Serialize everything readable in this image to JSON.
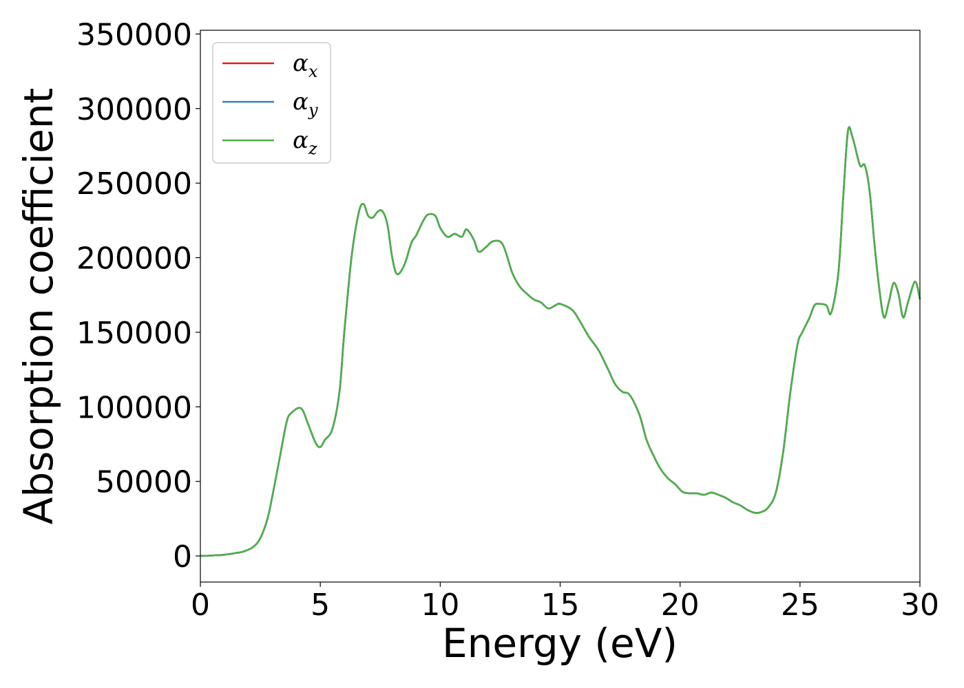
{
  "chart_data": {
    "type": "line",
    "xlabel": "Energy (eV)",
    "ylabel": "Absorption coefficient",
    "xlim": [
      0,
      30
    ],
    "ylim": [
      -17500,
      352500
    ],
    "xticks": [
      0,
      5,
      10,
      15,
      20,
      25,
      30
    ],
    "xtick_labels": [
      "0",
      "5",
      "10",
      "15",
      "20",
      "25",
      "30"
    ],
    "yticks": [
      0,
      50000,
      100000,
      150000,
      200000,
      250000,
      300000,
      350000
    ],
    "ytick_labels": [
      "0",
      "50000",
      "100000",
      "150000",
      "200000",
      "250000",
      "300000",
      "350000"
    ],
    "grid": false,
    "legend_position": "top-left",
    "series": [
      {
        "name": "α",
        "subscript": "x",
        "color": "#e41a1c"
      },
      {
        "name": "α",
        "subscript": "y",
        "color": "#377eb8"
      },
      {
        "name": "α",
        "subscript": "z",
        "color": "#4daf4a"
      }
    ],
    "x": [
      0,
      0.5,
      1.0,
      1.5,
      1.8,
      2.2,
      2.5,
      2.8,
      3.0,
      3.3,
      3.6,
      3.8,
      4.2,
      4.5,
      4.8,
      5.0,
      5.2,
      5.5,
      5.8,
      6.0,
      6.3,
      6.6,
      6.8,
      7.0,
      7.2,
      7.4,
      7.6,
      7.8,
      8.0,
      8.2,
      8.5,
      8.8,
      9.0,
      9.3,
      9.5,
      9.8,
      10.0,
      10.3,
      10.6,
      10.9,
      11.1,
      11.4,
      11.6,
      11.9,
      12.2,
      12.6,
      13.0,
      13.3,
      13.6,
      13.9,
      14.2,
      14.5,
      14.8,
      15.0,
      15.5,
      15.8,
      16.2,
      16.6,
      17.0,
      17.3,
      17.6,
      17.9,
      18.3,
      18.6,
      18.9,
      19.2,
      19.5,
      19.8,
      20.1,
      20.4,
      20.7,
      21.0,
      21.3,
      21.6,
      21.9,
      22.2,
      22.5,
      22.8,
      23.1,
      23.4,
      23.7,
      24.0,
      24.3,
      24.6,
      24.9,
      25.1,
      25.4,
      25.6,
      25.8,
      26.1,
      26.3,
      26.6,
      26.8,
      27.0,
      27.2,
      27.5,
      27.7,
      27.9,
      28.1,
      28.3,
      28.5,
      28.7,
      28.9,
      29.1,
      29.3,
      29.5,
      29.8,
      30.0
    ],
    "values": [
      0,
      300,
      800,
      2000,
      3000,
      6000,
      12000,
      25000,
      40000,
      65000,
      90000,
      96000,
      99000,
      88000,
      76000,
      73000,
      78000,
      85000,
      110000,
      150000,
      200000,
      230000,
      236000,
      228000,
      227000,
      231000,
      231000,
      222000,
      200000,
      189000,
      195000,
      210000,
      215000,
      225000,
      229000,
      228000,
      220000,
      214000,
      216000,
      214000,
      219000,
      212000,
      204000,
      207000,
      211000,
      209000,
      190000,
      181000,
      176000,
      172000,
      170000,
      166000,
      168000,
      169000,
      165000,
      158000,
      147000,
      138000,
      125000,
      115000,
      110000,
      108000,
      95000,
      78000,
      67000,
      58000,
      52000,
      48000,
      43000,
      42000,
      42000,
      41000,
      42500,
      41000,
      39000,
      36000,
      34000,
      31000,
      29000,
      29500,
      33000,
      43000,
      70000,
      110000,
      142000,
      150000,
      160000,
      168000,
      169000,
      168000,
      163000,
      190000,
      240000,
      285000,
      280000,
      262000,
      262000,
      245000,
      210000,
      180000,
      160000,
      170000,
      183000,
      176000,
      160000,
      170000,
      184000,
      172000
    ]
  }
}
